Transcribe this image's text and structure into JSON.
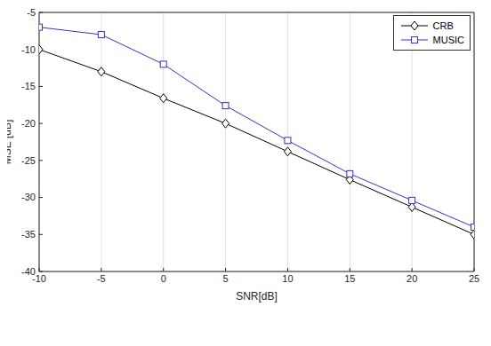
{
  "chart_data": {
    "type": "line",
    "x_label": "SNR[dB]",
    "y_label": "MSE [dB]",
    "x": [
      -10,
      -5,
      0,
      5,
      10,
      15,
      20,
      25
    ],
    "series": [
      {
        "name": "CRB",
        "color": "#000000",
        "marker": "diamond",
        "values": [
          -10,
          -13,
          -16.6,
          -20,
          -23.8,
          -27.6,
          -31.3,
          -35
        ]
      },
      {
        "name": "MUSIC",
        "color": "#3333cc",
        "marker": "square",
        "values": [
          -7,
          -8,
          -12,
          -17.6,
          -22.3,
          -26.8,
          -30.4,
          -34
        ]
      }
    ],
    "xlim": [
      -10,
      25
    ],
    "ylim": [
      -40,
      -5
    ],
    "xticks": [
      -10,
      -5,
      0,
      5,
      10,
      15,
      20,
      25
    ],
    "yticks": [
      -40,
      -35,
      -30,
      -25,
      -20,
      -15,
      -10,
      -5
    ],
    "grid": true,
    "legend": "upper right"
  }
}
